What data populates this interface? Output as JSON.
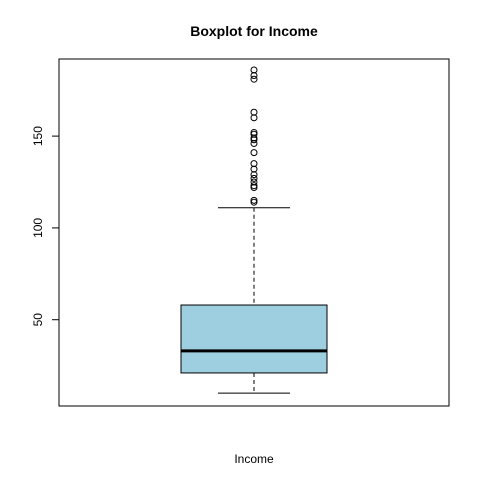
{
  "chart_data": {
    "type": "boxplot",
    "title": "Boxplot for  Income",
    "xlabel": "Income",
    "ylabel": "",
    "ylim": [
      3,
      192
    ],
    "yticks": [
      50,
      100,
      150
    ],
    "box_color": "#9ecfe0",
    "series": [
      {
        "whisker_low": 10,
        "q1": 21,
        "median": 33,
        "q3": 58,
        "whisker_high": 111,
        "outliers": [
          186,
          183,
          181,
          163,
          160,
          152,
          151,
          149,
          148,
          146,
          141,
          135,
          132,
          129,
          127,
          125,
          123,
          122,
          115,
          114
        ]
      }
    ]
  }
}
